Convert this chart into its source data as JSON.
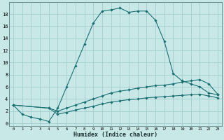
{
  "xlabel": "Humidex (Indice chaleur)",
  "background_color": "#c8e8e8",
  "grid_color": "#9ec8c8",
  "line_color": "#1a7070",
  "line1_x": [
    0,
    1,
    2,
    3,
    4,
    5,
    6,
    7,
    8,
    9,
    10,
    11,
    12,
    13,
    14,
    15,
    16,
    17,
    18,
    19,
    20,
    21,
    22,
    23
  ],
  "line1_y": [
    3.0,
    1.5,
    1.0,
    0.7,
    0.3,
    2.5,
    6.0,
    9.5,
    13.0,
    16.5,
    18.5,
    18.7,
    19.0,
    18.3,
    18.5,
    18.5,
    17.0,
    13.5,
    8.2,
    7.0,
    6.5,
    6.0,
    5.0,
    4.7
  ],
  "line2_x": [
    0,
    4,
    5,
    6,
    7,
    8,
    9,
    10,
    11,
    12,
    13,
    14,
    15,
    16,
    17,
    18,
    19,
    20,
    21,
    22,
    23
  ],
  "line2_y": [
    3.0,
    2.5,
    2.0,
    2.5,
    3.0,
    3.5,
    4.0,
    4.5,
    5.0,
    5.3,
    5.5,
    5.8,
    6.0,
    6.2,
    6.3,
    6.5,
    6.8,
    7.0,
    7.2,
    6.5,
    4.8
  ],
  "line3_x": [
    0,
    4,
    5,
    6,
    7,
    8,
    9,
    10,
    11,
    12,
    13,
    14,
    15,
    16,
    17,
    18,
    19,
    20,
    21,
    22,
    23
  ],
  "line3_y": [
    3.0,
    2.5,
    1.5,
    1.8,
    2.2,
    2.5,
    2.8,
    3.2,
    3.5,
    3.7,
    3.9,
    4.0,
    4.2,
    4.3,
    4.4,
    4.5,
    4.6,
    4.7,
    4.8,
    4.5,
    4.2
  ],
  "xlim": [
    -0.5,
    23.5
  ],
  "ylim": [
    -0.5,
    20
  ],
  "yticks": [
    0,
    2,
    4,
    6,
    8,
    10,
    12,
    14,
    16,
    18
  ],
  "xticks": [
    0,
    1,
    2,
    3,
    4,
    5,
    6,
    7,
    8,
    9,
    10,
    11,
    12,
    13,
    14,
    15,
    16,
    17,
    18,
    19,
    20,
    21,
    22,
    23
  ],
  "xtick_labels": [
    "0",
    "1",
    "2",
    "3",
    "4",
    "5",
    "6",
    "7",
    "8",
    "9",
    "10",
    "11",
    "12",
    "13",
    "14",
    "15",
    "16",
    "17",
    "18",
    "19",
    "20",
    "21",
    "22",
    "23"
  ]
}
